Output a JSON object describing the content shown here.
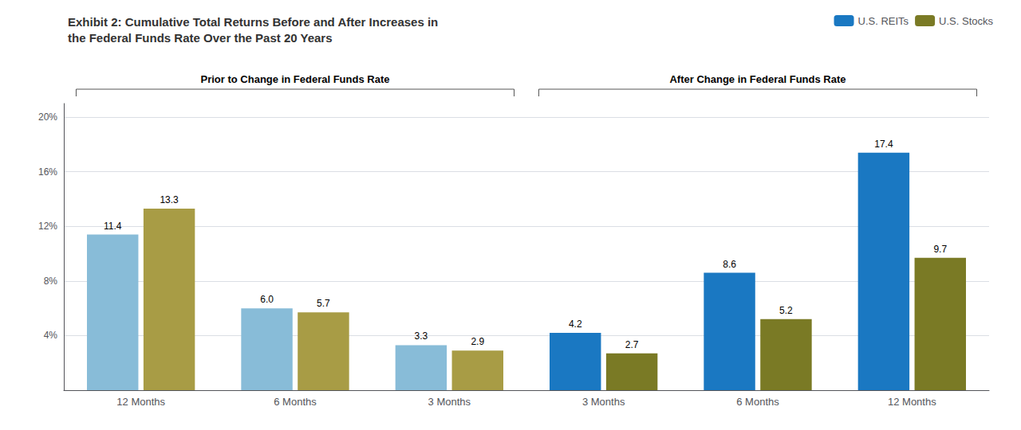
{
  "chart_data": {
    "type": "bar",
    "title": "Exhibit 2: Cumulative Total Returns Before and After Increases in\nthe Federal Funds Rate Over the Past 20 Years",
    "categories": [
      "12 Months",
      "6 Months",
      "3 Months",
      "3 Months",
      "6 Months",
      "12 Months"
    ],
    "series": [
      {
        "name": "U.S. REITs",
        "color": "#1a78c2",
        "colors": [
          "#88bcd8",
          "#88bcd8",
          "#88bcd8",
          "#1a78c2",
          "#1a78c2",
          "#1a78c2"
        ],
        "values": [
          11.4,
          6.0,
          3.3,
          4.2,
          8.6,
          17.4
        ],
        "value_labels": [
          "11.4",
          "6.0",
          "3.3",
          "4.2",
          "8.6",
          "17.4"
        ]
      },
      {
        "name": "U.S. Stocks",
        "color": "#7a7a25",
        "colors": [
          "#a89c45",
          "#a89c45",
          "#a89c45",
          "#7a7a25",
          "#7a7a25",
          "#7a7a25"
        ],
        "values": [
          13.3,
          5.7,
          2.9,
          2.7,
          5.2,
          9.7
        ],
        "value_labels": [
          "13.3",
          "5.7",
          "2.9",
          "2.7",
          "5.2",
          "9.7"
        ]
      }
    ],
    "ylim": [
      0,
      21
    ],
    "yticks": [
      {
        "value": 4,
        "label": "4%"
      },
      {
        "value": 8,
        "label": "8%"
      },
      {
        "value": 12,
        "label": "12%"
      },
      {
        "value": 16,
        "label": "16%"
      },
      {
        "value": 20,
        "label": "20%"
      }
    ],
    "grid": true,
    "legend": "upper right",
    "data_labels": true,
    "annotations": [
      "Prior to Change in Federal Funds Rate",
      "After Change in Federal Funds Rate"
    ]
  }
}
